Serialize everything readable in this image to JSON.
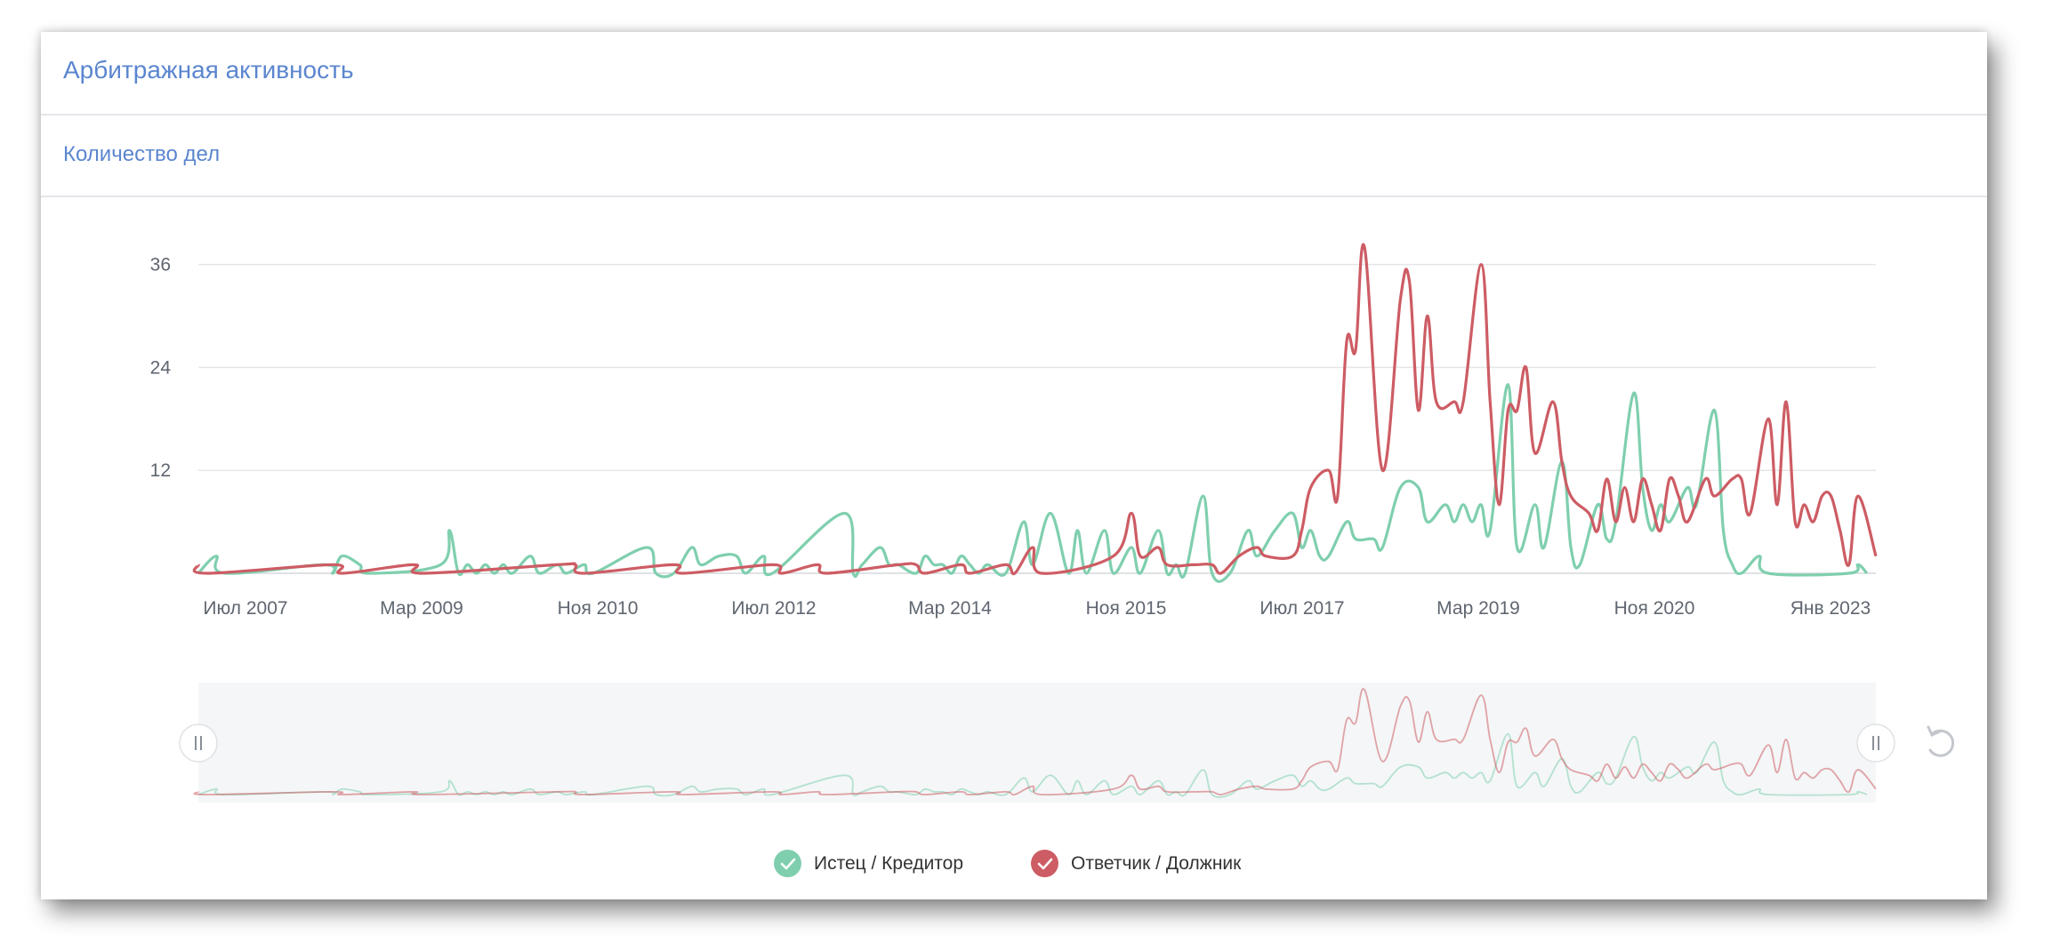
{
  "panel": {
    "title": "Арбитражная активность",
    "subtitle": "Количество дел"
  },
  "colors": {
    "plaintiff": "#7fcfae",
    "defendant": "#cd5c64",
    "title": "#5b86cf"
  },
  "chart_data": {
    "type": "line",
    "x_tick_labels": [
      "Июл 2007",
      "Мар 2009",
      "Ноя 2010",
      "Июл 2012",
      "Мар 2014",
      "Ноя 2015",
      "Июл 2017",
      "Мар 2019",
      "Ноя 2020",
      "Янв 2023"
    ],
    "y_ticks": [
      12,
      24,
      36
    ],
    "ylim": [
      0,
      38
    ],
    "grid": true,
    "legend_position": "bottom-center",
    "series": [
      {
        "name": "Истец / Кредитор",
        "color": "#7fcfae",
        "points": [
          [
            "2007-07",
            0
          ],
          [
            "2007-09",
            2
          ],
          [
            "2007-10",
            0
          ],
          [
            "2008-09",
            1
          ],
          [
            "2008-10",
            0
          ],
          [
            "2008-11",
            2
          ],
          [
            "2009-01",
            1
          ],
          [
            "2009-02",
            0
          ],
          [
            "2009-10",
            1
          ],
          [
            "2009-11",
            5
          ],
          [
            "2009-12",
            0
          ],
          [
            "2010-01",
            1
          ],
          [
            "2010-02",
            0
          ],
          [
            "2010-03",
            1
          ],
          [
            "2010-04",
            0
          ],
          [
            "2010-05",
            1
          ],
          [
            "2010-06",
            0
          ],
          [
            "2010-08",
            2
          ],
          [
            "2010-09",
            0
          ],
          [
            "2010-11",
            1
          ],
          [
            "2010-12",
            0
          ],
          [
            "2011-02",
            1
          ],
          [
            "2011-03",
            0
          ],
          [
            "2011-09",
            3
          ],
          [
            "2011-10",
            0
          ],
          [
            "2011-12",
            0
          ],
          [
            "2012-02",
            3
          ],
          [
            "2012-03",
            1
          ],
          [
            "2012-05",
            2
          ],
          [
            "2012-07",
            2
          ],
          [
            "2012-08",
            0
          ],
          [
            "2012-10",
            2
          ],
          [
            "2012-11",
            0
          ],
          [
            "2013-07",
            7
          ],
          [
            "2013-08",
            0
          ],
          [
            "2013-09",
            1
          ],
          [
            "2013-11",
            3
          ],
          [
            "2013-12",
            1
          ],
          [
            "2014-01",
            1
          ],
          [
            "2014-03",
            0
          ],
          [
            "2014-04",
            2
          ],
          [
            "2014-05",
            1
          ],
          [
            "2014-06",
            1
          ],
          [
            "2014-07",
            0
          ],
          [
            "2014-08",
            2
          ],
          [
            "2014-09",
            1
          ],
          [
            "2014-10",
            0
          ],
          [
            "2014-11",
            1
          ],
          [
            "2015-01",
            0
          ],
          [
            "2015-03",
            6
          ],
          [
            "2015-04",
            1
          ],
          [
            "2015-06",
            7
          ],
          [
            "2015-08",
            0
          ],
          [
            "2015-09",
            5
          ],
          [
            "2015-10",
            0
          ],
          [
            "2015-12",
            5
          ],
          [
            "2016-01",
            0
          ],
          [
            "2016-03",
            3
          ],
          [
            "2016-04",
            0
          ],
          [
            "2016-06",
            5
          ],
          [
            "2016-07",
            0
          ],
          [
            "2016-08",
            1
          ],
          [
            "2016-09",
            0
          ],
          [
            "2016-11",
            9
          ],
          [
            "2016-12",
            0
          ],
          [
            "2017-02",
            0
          ],
          [
            "2017-04",
            5
          ],
          [
            "2017-05",
            2
          ],
          [
            "2017-07",
            5
          ],
          [
            "2017-09",
            7
          ],
          [
            "2017-10",
            3
          ],
          [
            "2017-11",
            5
          ],
          [
            "2017-12",
            2
          ],
          [
            "2018-01",
            2
          ],
          [
            "2018-03",
            6
          ],
          [
            "2018-04",
            4
          ],
          [
            "2018-06",
            4
          ],
          [
            "2018-07",
            3
          ],
          [
            "2018-09",
            10
          ],
          [
            "2018-11",
            10
          ],
          [
            "2018-12",
            6
          ],
          [
            "2019-02",
            8
          ],
          [
            "2019-03",
            6
          ],
          [
            "2019-04",
            8
          ],
          [
            "2019-05",
            6
          ],
          [
            "2019-06",
            8
          ],
          [
            "2019-07",
            5
          ],
          [
            "2019-09",
            22
          ],
          [
            "2019-10",
            3
          ],
          [
            "2019-12",
            8
          ],
          [
            "2020-01",
            3
          ],
          [
            "2020-03",
            13
          ],
          [
            "2020-04",
            3
          ],
          [
            "2020-05",
            1
          ],
          [
            "2020-07",
            8
          ],
          [
            "2020-08",
            4
          ],
          [
            "2020-09",
            6
          ],
          [
            "2020-11",
            21
          ],
          [
            "2020-12",
            10
          ],
          [
            "2021-01",
            5
          ],
          [
            "2021-02",
            8
          ],
          [
            "2021-03",
            6
          ],
          [
            "2021-05",
            10
          ],
          [
            "2021-06",
            8
          ],
          [
            "2021-08",
            19
          ],
          [
            "2021-09",
            5
          ],
          [
            "2021-10",
            1
          ],
          [
            "2021-11",
            0
          ],
          [
            "2022-01",
            2
          ],
          [
            "2022-02",
            0
          ],
          [
            "2022-11",
            0
          ],
          [
            "2022-12",
            1
          ],
          [
            "2023-01",
            0
          ]
        ]
      },
      {
        "name": "Ответчик / Должник",
        "color": "#cd5c64",
        "points": [
          [
            "2007-07",
            1
          ],
          [
            "2007-08",
            0
          ],
          [
            "2008-10",
            1
          ],
          [
            "2008-11",
            0
          ],
          [
            "2009-07",
            1
          ],
          [
            "2009-08",
            0
          ],
          [
            "2010-11",
            1
          ],
          [
            "2011-01",
            1
          ],
          [
            "2011-02",
            0
          ],
          [
            "2011-12",
            1
          ],
          [
            "2012-01",
            0
          ],
          [
            "2012-11",
            1
          ],
          [
            "2012-12",
            0
          ],
          [
            "2013-04",
            1
          ],
          [
            "2013-05",
            0
          ],
          [
            "2014-01",
            1
          ],
          [
            "2014-03",
            1
          ],
          [
            "2014-04",
            0
          ],
          [
            "2014-08",
            1
          ],
          [
            "2014-09",
            0
          ],
          [
            "2015-01",
            1
          ],
          [
            "2015-02",
            0
          ],
          [
            "2015-04",
            3
          ],
          [
            "2015-05",
            0
          ],
          [
            "2016-01",
            2
          ],
          [
            "2016-03",
            7
          ],
          [
            "2016-04",
            2
          ],
          [
            "2016-06",
            3
          ],
          [
            "2016-07",
            1
          ],
          [
            "2016-10",
            1
          ],
          [
            "2016-12",
            1
          ],
          [
            "2017-01",
            0
          ],
          [
            "2017-03",
            2
          ],
          [
            "2017-05",
            3
          ],
          [
            "2017-06",
            2
          ],
          [
            "2017-09",
            2
          ],
          [
            "2017-10",
            5
          ],
          [
            "2017-11",
            10
          ],
          [
            "2018-01",
            12
          ],
          [
            "2018-02",
            9
          ],
          [
            "2018-03",
            27
          ],
          [
            "2018-04",
            26
          ],
          [
            "2018-05",
            38
          ],
          [
            "2018-07",
            12
          ],
          [
            "2018-09",
            32
          ],
          [
            "2018-10",
            34
          ],
          [
            "2018-11",
            19
          ],
          [
            "2018-12",
            30
          ],
          [
            "2019-01",
            20
          ],
          [
            "2019-03",
            20
          ],
          [
            "2019-04",
            20
          ],
          [
            "2019-06",
            36
          ],
          [
            "2019-07",
            20
          ],
          [
            "2019-08",
            8
          ],
          [
            "2019-09",
            19
          ],
          [
            "2019-10",
            19
          ],
          [
            "2019-11",
            24
          ],
          [
            "2019-12",
            14
          ],
          [
            "2020-02",
            20
          ],
          [
            "2020-03",
            13
          ],
          [
            "2020-04",
            9
          ],
          [
            "2020-06",
            7
          ],
          [
            "2020-07",
            5
          ],
          [
            "2020-08",
            11
          ],
          [
            "2020-09",
            6
          ],
          [
            "2020-10",
            10
          ],
          [
            "2020-11",
            6
          ],
          [
            "2020-12",
            11
          ],
          [
            "2021-01",
            8
          ],
          [
            "2021-02",
            5
          ],
          [
            "2021-03",
            11
          ],
          [
            "2021-04",
            9
          ],
          [
            "2021-05",
            6
          ],
          [
            "2021-07",
            11
          ],
          [
            "2021-08",
            9
          ],
          [
            "2021-10",
            11
          ],
          [
            "2021-11",
            11
          ],
          [
            "2021-12",
            7
          ],
          [
            "2022-02",
            18
          ],
          [
            "2022-03",
            8
          ],
          [
            "2022-04",
            20
          ],
          [
            "2022-05",
            6
          ],
          [
            "2022-06",
            8
          ],
          [
            "2022-07",
            6
          ],
          [
            "2022-08",
            9
          ],
          [
            "2022-09",
            9
          ],
          [
            "2022-10",
            5
          ],
          [
            "2022-11",
            1
          ],
          [
            "2022-12",
            9
          ],
          [
            "2023-02",
            2
          ]
        ]
      }
    ]
  }
}
